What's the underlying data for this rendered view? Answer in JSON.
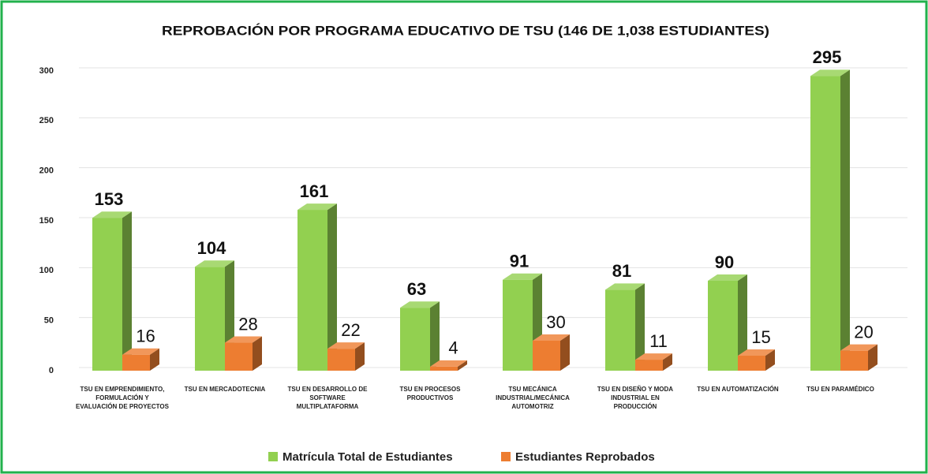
{
  "chart_data": {
    "type": "bar3d",
    "title": "REPROBACIÓN POR PROGRAMA EDUCATIVO DE TSU (146 DE 1,038 ESTUDIANTES)",
    "categories": [
      "TSU EN EMPRENDIMIENTO, FORMULACIÓN Y EVALUACIÓN DE PROYECTOS",
      "TSU EN MERCADOTECNIA",
      "TSU EN DESARROLLO DE SOFTWARE MULTIPLATAFORMA",
      "TSU EN PROCESOS PRODUCTIVOS",
      "TSU MECÁNICA INDUSTRIAL/MECÁNICA AUTOMOTRIZ",
      "TSU EN DISEÑO Y MODA INDUSTRIAL EN PRODUCCIÓN",
      "TSU EN AUTOMATIZACIÓN",
      "TSU EN PARAMÉDICO"
    ],
    "series": [
      {
        "name": "Matrícula Total de Estudiantes",
        "color": "#92d050",
        "values": [
          153,
          104,
          161,
          63,
          91,
          81,
          90,
          295
        ]
      },
      {
        "name": "Estudiantes Reprobados",
        "color": "#ed7d31",
        "values": [
          16,
          28,
          22,
          4,
          30,
          11,
          15,
          20
        ]
      }
    ],
    "ylim": [
      0,
      300
    ],
    "yticks": [
      0,
      50,
      100,
      150,
      200,
      250,
      300
    ],
    "grid": true,
    "legend": "bottom"
  }
}
